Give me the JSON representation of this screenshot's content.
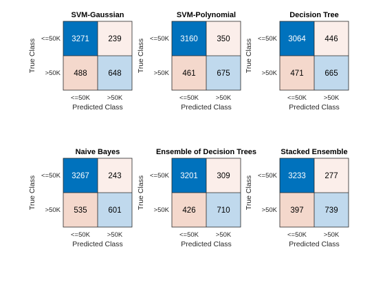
{
  "chart_data": [
    {
      "type": "heatmap",
      "title": "SVM-Gaussian",
      "xlabel": "Predicted Class",
      "ylabel": "True Class",
      "x_categories": [
        "<=50K",
        ">50K"
      ],
      "y_categories": [
        "<=50K",
        ">50K"
      ],
      "values": [
        [
          3271,
          239
        ],
        [
          488,
          648
        ]
      ]
    },
    {
      "type": "heatmap",
      "title": "SVM-Polynomial",
      "xlabel": "Predicted Class",
      "ylabel": "True Class",
      "x_categories": [
        "<=50K",
        ">50K"
      ],
      "y_categories": [
        "<=50K",
        ">50K"
      ],
      "values": [
        [
          3160,
          350
        ],
        [
          461,
          675
        ]
      ]
    },
    {
      "type": "heatmap",
      "title": "Decision Tree",
      "xlabel": "Predicted Class",
      "ylabel": "True Class",
      "x_categories": [
        "<=50K",
        ">50K"
      ],
      "y_categories": [
        "<=50K",
        ">50K"
      ],
      "values": [
        [
          3064,
          446
        ],
        [
          471,
          665
        ]
      ]
    },
    {
      "type": "heatmap",
      "title": "Naive Bayes",
      "xlabel": "Predicted Class",
      "ylabel": "True Class",
      "x_categories": [
        "<=50K",
        ">50K"
      ],
      "y_categories": [
        "<=50K",
        ">50K"
      ],
      "values": [
        [
          3267,
          243
        ],
        [
          535,
          601
        ]
      ]
    },
    {
      "type": "heatmap",
      "title": "Ensemble of Decision Trees",
      "xlabel": "Predicted Class",
      "ylabel": "True Class",
      "x_categories": [
        "<=50K",
        ">50K"
      ],
      "y_categories": [
        "<=50K",
        ">50K"
      ],
      "values": [
        [
          3201,
          309
        ],
        [
          426,
          710
        ]
      ]
    },
    {
      "type": "heatmap",
      "title": "Stacked Ensemble",
      "xlabel": "Predicted Class",
      "ylabel": "True Class",
      "x_categories": [
        "<=50K",
        ">50K"
      ],
      "y_categories": [
        "<=50K",
        ">50K"
      ],
      "values": [
        [
          3233,
          277
        ],
        [
          397,
          739
        ]
      ]
    }
  ],
  "colors": {
    "diagonal_max": "#0072bd",
    "diagonal_min": "#c0d9ed",
    "offdiag_max": "#f4d8cc",
    "offdiag_min": "#fbeeea",
    "text_dark": "#000000",
    "text_light": "#ffffff"
  }
}
